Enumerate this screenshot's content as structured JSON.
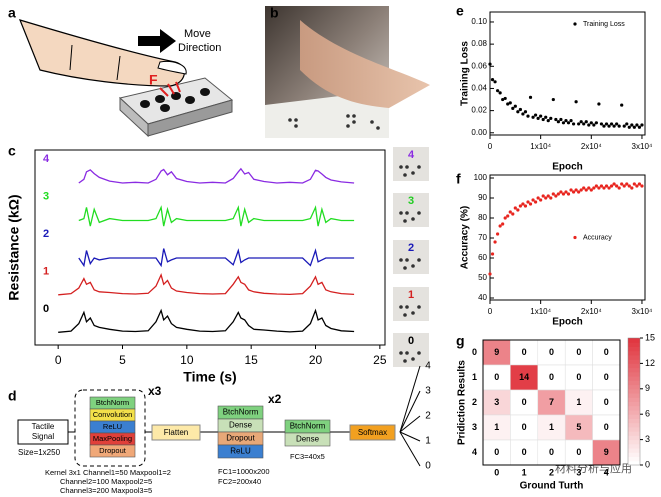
{
  "panel_labels": [
    "a",
    "b",
    "c",
    "d",
    "e",
    "f",
    "g"
  ],
  "panel_a": {
    "direction": [
      "Move",
      "Direction"
    ],
    "force": "F"
  },
  "panel_c_cards": [
    {
      "label": "4",
      "color": "#8a2be2"
    },
    {
      "label": "3",
      "color": "#22cc22"
    },
    {
      "label": "2",
      "color": "#1a1ab8"
    },
    {
      "label": "1",
      "color": "#d42020"
    },
    {
      "label": "0",
      "color": "#000000"
    }
  ],
  "panel_d": {
    "input": [
      "Tactile",
      "Signal"
    ],
    "size": "Size=1x250",
    "conv_block": [
      "BtchNorm",
      "Convolution",
      "ReLU",
      "MaxPooling",
      "Dropout"
    ],
    "conv_repeat": "x3",
    "flatten": "Flatten",
    "dense_block": [
      "BtchNorm",
      "Dense",
      "Dropout",
      "ReLU"
    ],
    "dense_repeat": "x2",
    "final_block": [
      "BtchNorm",
      "Dense"
    ],
    "softmax": "Softmax",
    "outputs": [
      "4",
      "3",
      "2",
      "1",
      "0"
    ],
    "conv_notes": [
      "Kernel 3x1 Channel1=50 Maxpool1=2",
      "Channel2=100 Maxpool2=5",
      "Channel3=200 Maxpool3=5"
    ],
    "dense_notes": [
      "FC1=1000x200",
      "FC2=200x40"
    ],
    "final_note": "FC3=40x5"
  },
  "watermark": "材料分析与应用",
  "chart_data": [
    {
      "type": "line",
      "xlabel": "Time (s)",
      "ylabel": "Resistance (kΩ)",
      "xlim": [
        -1.8,
        25.4
      ],
      "ylim": [
        -0.32,
        4.88
      ],
      "xticks": [
        0,
        5,
        10,
        15,
        20,
        25
      ],
      "x": [
        0,
        1,
        1.6,
        2,
        2.2,
        2.5,
        2.8,
        3.2,
        4,
        5,
        6,
        7,
        7.6,
        8,
        8.2,
        8.5,
        8.8,
        9.2,
        10,
        11,
        12,
        13,
        13.6,
        14,
        14.2,
        14.5,
        14.8,
        15.2,
        16,
        17,
        18,
        19,
        19.6,
        20,
        20.2,
        20.5,
        20.8,
        21.2,
        22,
        23
      ],
      "series": [
        {
          "name": "0",
          "color": "#000000",
          "values": [
            0.02,
            0.05,
            0.25,
            0.55,
            0.3,
            0.4,
            0.2,
            0.15,
            0.1,
            0.05,
            0.04,
            0.06,
            0.3,
            0.6,
            0.35,
            0.45,
            0.25,
            0.15,
            0.1,
            0.05,
            0.04,
            0.06,
            0.3,
            0.55,
            0.4,
            0.35,
            0.2,
            0.1,
            0.08,
            0.05,
            0.03,
            0.05,
            0.25,
            0.6,
            0.35,
            0.4,
            0.2,
            0.12,
            0.06,
            0.04
          ]
        },
        {
          "name": "1",
          "color": "#d42020",
          "values": [
            1.02,
            1.05,
            1.2,
            1.45,
            1.3,
            1.35,
            1.15,
            1.1,
            1.08,
            1.05,
            1.04,
            1.06,
            1.25,
            1.55,
            1.3,
            1.4,
            1.2,
            1.12,
            1.08,
            1.05,
            1.04,
            1.05,
            1.3,
            1.5,
            1.35,
            1.3,
            1.15,
            1.1,
            1.06,
            1.04,
            1.03,
            1.05,
            1.25,
            1.5,
            1.3,
            1.35,
            1.15,
            1.1,
            1.05,
            1.03
          ]
        },
        {
          "name": "2",
          "color": "#1a1ab8",
          "values": [
            null,
            null,
            2,
            1.8,
            2.2,
            1.85,
            2,
            1.95,
            2,
            2,
            2,
            2,
            2,
            1.8,
            2.25,
            1.9,
            1.95,
            2,
            2,
            2,
            2,
            2,
            1.82,
            2.2,
            1.88,
            1.95,
            2,
            2,
            2,
            2,
            2,
            2,
            1.8,
            2.2,
            1.9,
            1.95,
            2,
            2,
            2,
            2
          ]
        },
        {
          "name": "3",
          "color": "#22dd22",
          "values": [
            null,
            null,
            3,
            3.05,
            3.35,
            2.85,
            3.3,
            2.95,
            3.05,
            3,
            3,
            3,
            3.05,
            3.35,
            2.85,
            3.3,
            2.95,
            3.05,
            3,
            3,
            3,
            3,
            3.05,
            3.35,
            2.85,
            3.3,
            2.95,
            3.05,
            3,
            3,
            3,
            3,
            3.05,
            3.35,
            2.85,
            3.3,
            2.95,
            3.05,
            3,
            3
          ]
        },
        {
          "name": "4",
          "color": "#8a2be2",
          "values": [
            null,
            null,
            4,
            4.1,
            4.3,
            4.35,
            4.25,
            4.15,
            4.05,
            4,
            4.02,
            4,
            4.1,
            4.32,
            4.36,
            4.22,
            4.3,
            4.12,
            4.04,
            4,
            4.02,
            4,
            4.12,
            4.3,
            4.38,
            4.24,
            4.28,
            4.1,
            4.04,
            4,
            4.02,
            4,
            4.1,
            4.34,
            4.32,
            4.24,
            4.15,
            4.08,
            4.03,
            4
          ]
        }
      ]
    },
    {
      "type": "scatter",
      "xlabel": "Epoch",
      "ylabel": "Training Loss",
      "legend": "upper right",
      "xlim": [
        0,
        30600
      ],
      "ylim": [
        -0.002,
        0.109
      ],
      "xticks": [
        0,
        {
          "value": 10000,
          "label": "1x10⁴"
        },
        {
          "value": 20000,
          "label": "2x10⁴"
        },
        {
          "value": 30000,
          "label": "3x10⁴"
        }
      ],
      "yticks": [
        {
          "value": 0,
          "label": "0.00"
        },
        {
          "value": 0.02,
          "label": "0.02"
        },
        {
          "value": 0.04,
          "label": "0.04"
        },
        {
          "value": 0.06,
          "label": "0.06"
        },
        {
          "value": 0.08,
          "label": "0.08"
        },
        {
          "value": 0.1,
          "label": "0.10"
        }
      ],
      "x": [
        0,
        500,
        1000,
        1500,
        2000,
        2500,
        3000,
        3500,
        4000,
        4500,
        5000,
        5500,
        6000,
        6500,
        7000,
        7500,
        8000,
        8500,
        9000,
        9500,
        10000,
        10500,
        11000,
        11500,
        12000,
        12500,
        13000,
        13500,
        14000,
        14500,
        15000,
        15500,
        16000,
        16500,
        17000,
        17500,
        18000,
        18500,
        19000,
        19500,
        20000,
        20500,
        21000,
        21500,
        22000,
        22500,
        23000,
        23500,
        24000,
        24500,
        25000,
        25500,
        26000,
        26500,
        27000,
        27500,
        28000,
        28500,
        29000,
        29500,
        30000
      ],
      "series": [
        {
          "name": "Training Loss",
          "color": "#000000",
          "values": [
            0.062,
            0.048,
            0.046,
            0.038,
            0.036,
            0.03,
            0.031,
            0.026,
            0.027,
            0.022,
            0.024,
            0.019,
            0.021,
            0.017,
            0.019,
            0.015,
            0.032,
            0.014,
            0.016,
            0.013,
            0.015,
            0.012,
            0.014,
            0.011,
            0.013,
            0.03,
            0.012,
            0.01,
            0.012,
            0.009,
            0.011,
            0.009,
            0.011,
            0.008,
            0.028,
            0.008,
            0.01,
            0.008,
            0.01,
            0.007,
            0.009,
            0.007,
            0.009,
            0.026,
            0.008,
            0.006,
            0.008,
            0.006,
            0.008,
            0.006,
            0.008,
            0.006,
            0.025,
            0.006,
            0.008,
            0.005,
            0.007,
            0.005,
            0.007,
            0.005,
            0.007
          ]
        }
      ]
    },
    {
      "type": "scatter",
      "xlabel": "Epoch",
      "ylabel": "Accuracy (%)",
      "legend": "center right",
      "xlim": [
        0,
        30600
      ],
      "ylim": [
        39,
        101.5
      ],
      "xticks": [
        0,
        {
          "value": 10000,
          "label": "1x10⁴"
        },
        {
          "value": 20000,
          "label": "2x10⁴"
        },
        {
          "value": 30000,
          "label": "3x10⁴"
        }
      ],
      "yticks": [
        40,
        50,
        60,
        70,
        80,
        90,
        100
      ],
      "x": [
        0,
        500,
        1000,
        1500,
        2000,
        2500,
        3000,
        3500,
        4000,
        4500,
        5000,
        5500,
        6000,
        6500,
        7000,
        7500,
        8000,
        8500,
        9000,
        9500,
        10000,
        10500,
        11000,
        11500,
        12000,
        12500,
        13000,
        13500,
        14000,
        14500,
        15000,
        15500,
        16000,
        16500,
        17000,
        17500,
        18000,
        18500,
        19000,
        19500,
        20000,
        20500,
        21000,
        21500,
        22000,
        22500,
        23000,
        23500,
        24000,
        24500,
        25000,
        25500,
        26000,
        26500,
        27000,
        27500,
        28000,
        28500,
        29000,
        29500,
        30000
      ],
      "series": [
        {
          "name": "Accuracy",
          "color": "#e8251f",
          "values": [
            52,
            62,
            68,
            72,
            76,
            77,
            80,
            81,
            83,
            82,
            85,
            84,
            86,
            87,
            86,
            88,
            87,
            89,
            88,
            90,
            89,
            91,
            90,
            91,
            90,
            92,
            91,
            92,
            93,
            92,
            93,
            92,
            94,
            93,
            94,
            93,
            94,
            95,
            94,
            95,
            94,
            95,
            96,
            95,
            96,
            95,
            96,
            95,
            96,
            97,
            96,
            95,
            97,
            96,
            97,
            96,
            95,
            97,
            96,
            97,
            96
          ]
        }
      ]
    },
    {
      "type": "heatmap",
      "xlabel": "Ground Turth",
      "ylabel": "Pridiction Results",
      "rows": [
        "0",
        "1",
        "2",
        "3",
        "4"
      ],
      "columns": [
        "0",
        "1",
        "2",
        "3",
        "4"
      ],
      "values": [
        [
          9,
          0,
          0,
          0,
          0
        ],
        [
          0,
          14,
          0,
          0,
          0
        ],
        [
          3,
          0,
          7,
          1,
          0
        ],
        [
          1,
          0,
          1,
          5,
          0
        ],
        [
          0,
          0,
          0,
          0,
          9
        ]
      ],
      "zlim": [
        0,
        15
      ],
      "colorbar_ticks": [
        0,
        3,
        6,
        9,
        12,
        15
      ],
      "colors": [
        "#ffffff",
        "#e0303a"
      ]
    }
  ]
}
